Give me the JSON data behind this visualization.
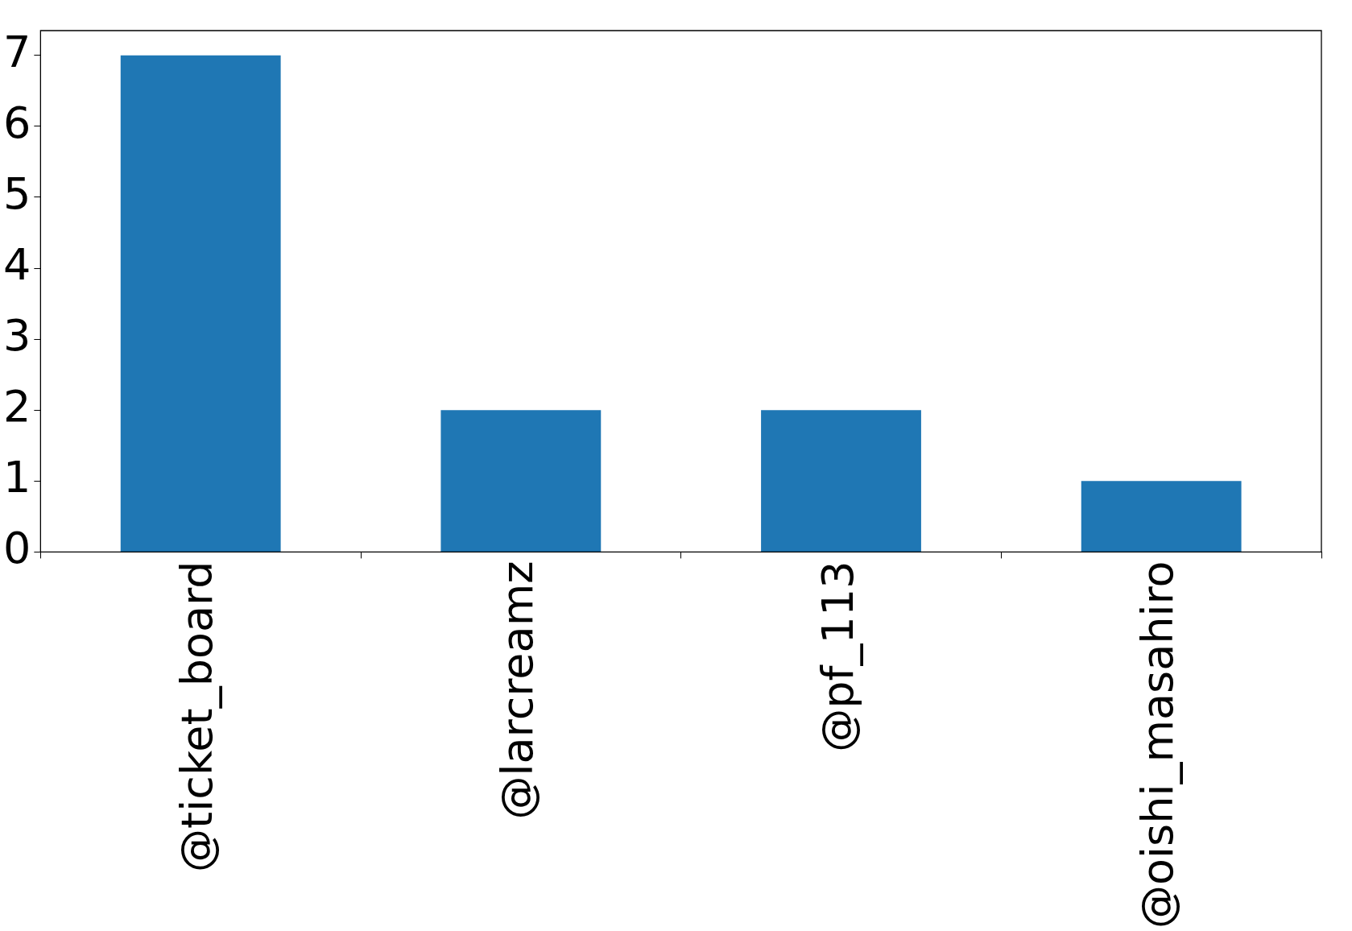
{
  "chart_data": {
    "type": "bar",
    "categories": [
      "@ticket_board",
      "@larcreamz",
      "@pf_113",
      "@oishi_masahiro"
    ],
    "values": [
      7,
      2,
      2,
      1
    ],
    "color": "#1f77b4",
    "ylim": [
      0,
      7.35
    ],
    "yticks": [
      0,
      1,
      2,
      3,
      4,
      5,
      6,
      7
    ],
    "grid": false,
    "legend": false
  }
}
